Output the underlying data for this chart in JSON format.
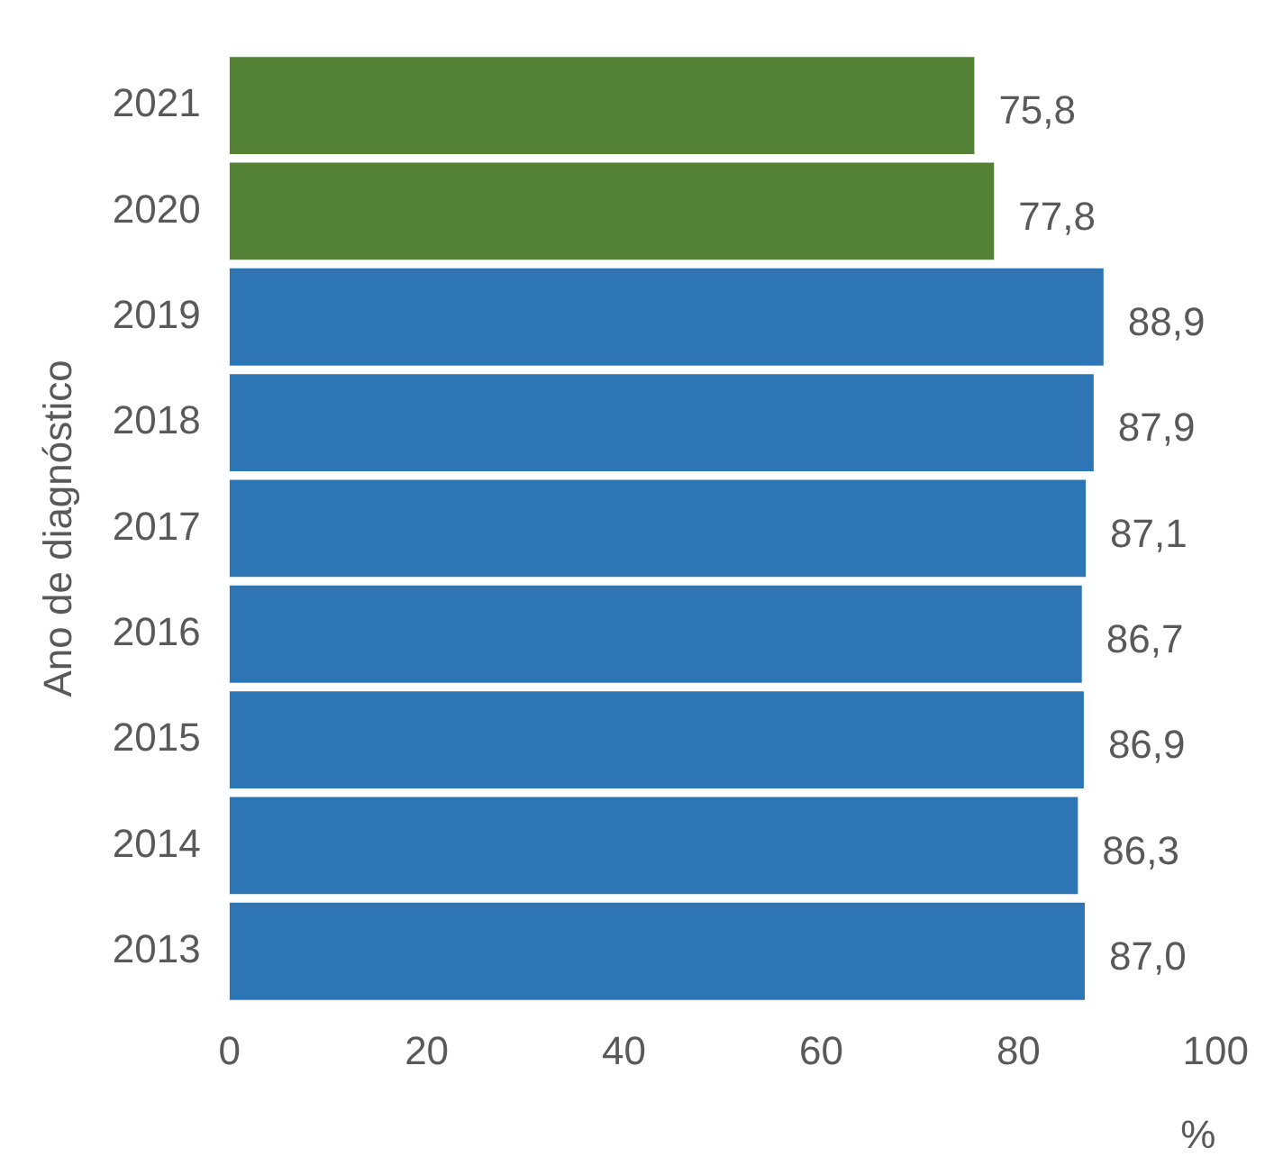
{
  "chart_data": {
    "type": "bar",
    "orientation": "horizontal",
    "ylabel": "Ano de diagnóstico",
    "xlabel": "%",
    "categories": [
      "2021",
      "2020",
      "2019",
      "2018",
      "2017",
      "2016",
      "2015",
      "2014",
      "2013"
    ],
    "values": [
      75.8,
      77.8,
      88.9,
      87.9,
      87.1,
      86.7,
      86.9,
      86.3,
      87.0
    ],
    "value_labels": [
      "75,8",
      "77,8",
      "88,9",
      "87,9",
      "87,1",
      "86,7",
      "86,9",
      "86,3",
      "87,0"
    ],
    "colors": [
      "#538135",
      "#538135",
      "#2e75b6",
      "#2e75b6",
      "#2e75b6",
      "#2e75b6",
      "#2e75b6",
      "#2e75b6",
      "#2e75b6"
    ],
    "xlim": [
      0,
      100
    ],
    "xticks": [
      0,
      20,
      40,
      60,
      80,
      100
    ]
  }
}
